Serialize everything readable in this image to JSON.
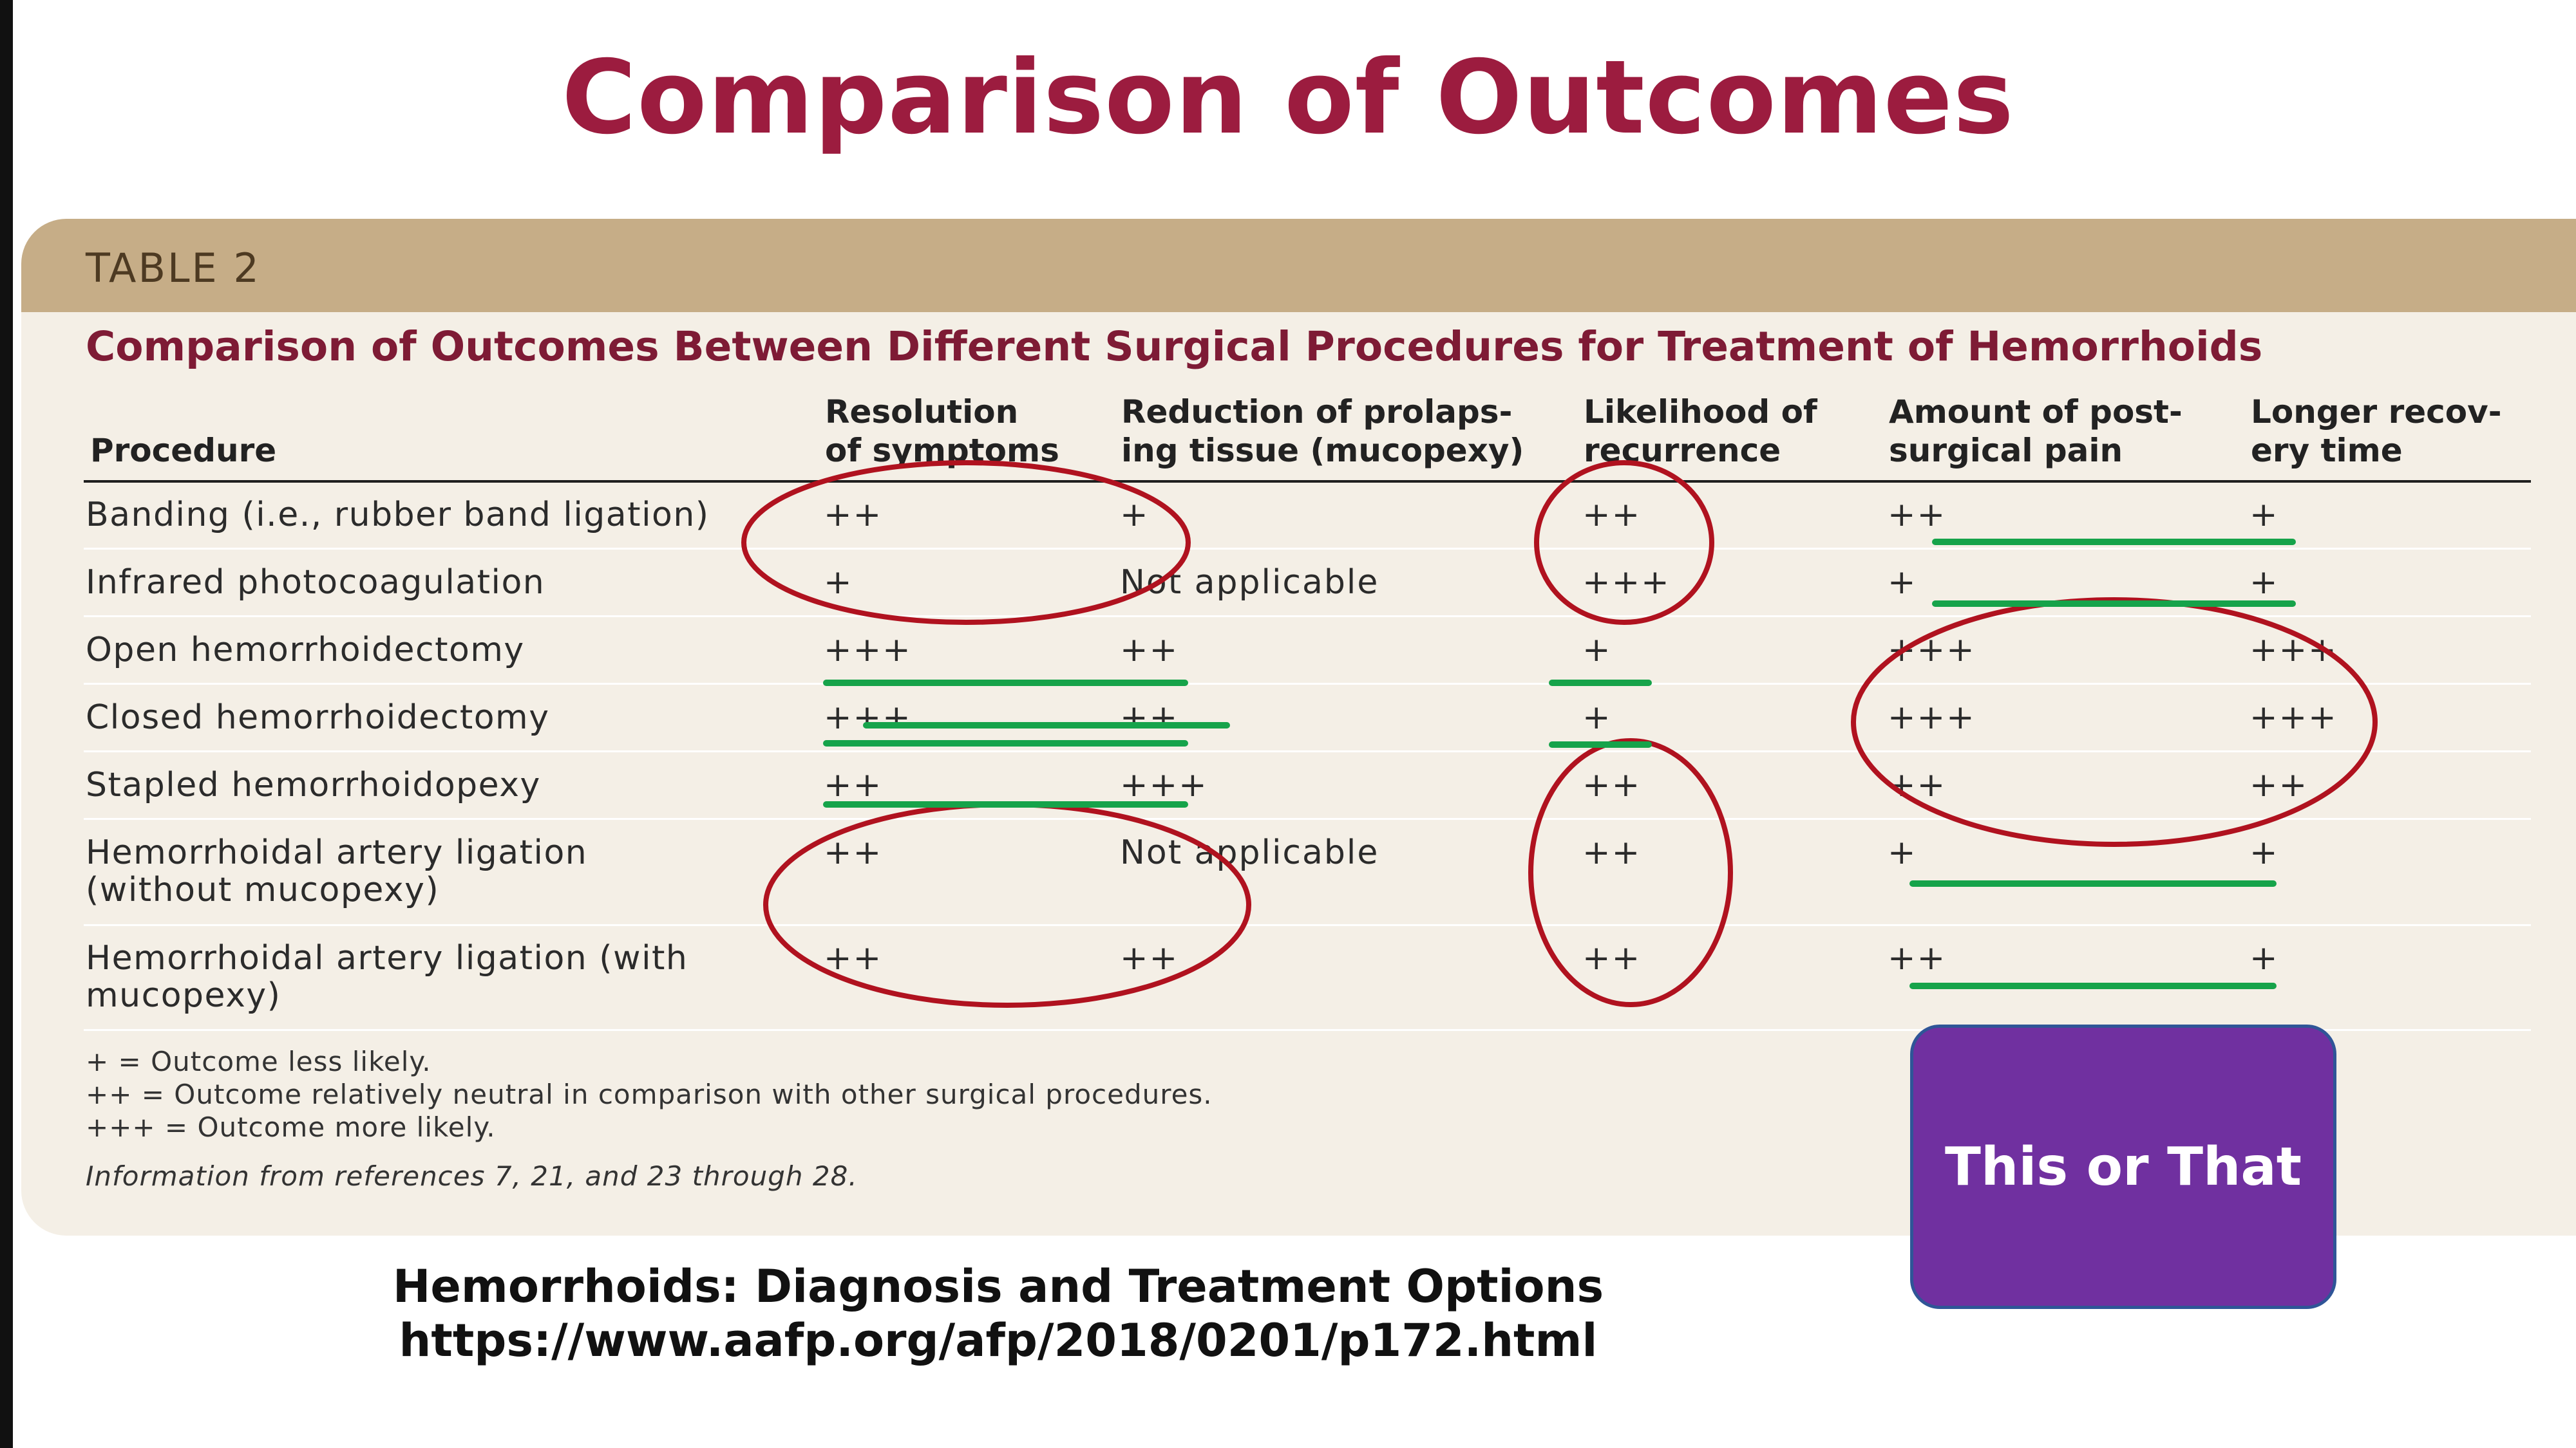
{
  "slide": {
    "title": "Comparison of Outcomes"
  },
  "table": {
    "label": "TABLE 2",
    "heading": "Comparison of Outcomes Between Different Surgical Procedures for Treatment of Hemorrhoids",
    "headers": {
      "procedure": "Procedure",
      "resolution": "Resolution\nof symptoms",
      "reduction": "Reduction of prolaps-\ning tissue (mucopexy)",
      "recurrence": "Likelihood of\nrecurrence",
      "pain": "Amount of post-\nsurgical pain",
      "recovery": "Longer recov-\nery time"
    },
    "rows": [
      {
        "procedure": "Banding (i.e., rubber band ligation)",
        "resolution": "++",
        "reduction": "+",
        "recurrence": "++",
        "pain": "++",
        "recovery": "+"
      },
      {
        "procedure": "Infrared photocoagulation",
        "resolution": "+",
        "reduction": "Not applicable",
        "recurrence": "+++",
        "pain": "+",
        "recovery": "+"
      },
      {
        "procedure": "Open hemorrhoidectomy",
        "resolution": "+++",
        "reduction": "++",
        "recurrence": "+",
        "pain": "+++",
        "recovery": "+++"
      },
      {
        "procedure": "Closed hemorrhoidectomy",
        "resolution": "+++",
        "reduction": "++",
        "recurrence": "+",
        "pain": "+++",
        "recovery": "+++"
      },
      {
        "procedure": "Stapled hemorrhoidopexy",
        "resolution": "++",
        "reduction": "+++",
        "recurrence": "++",
        "pain": "++",
        "recovery": "++"
      },
      {
        "procedure": "Hemorrhoidal artery ligation\n(without mucopexy)",
        "resolution": "++",
        "reduction": "Not applicable",
        "recurrence": "++",
        "pain": "+",
        "recovery": "+"
      },
      {
        "procedure": "Hemorrhoidal artery ligation (with\nmucopexy)",
        "resolution": "++",
        "reduction": "++",
        "recurrence": "++",
        "pain": "++",
        "recovery": "+"
      }
    ],
    "legend": [
      "+ = Outcome less likely.",
      "++ = Outcome relatively neutral in comparison with other surgical procedures.",
      "+++ = Outcome more likely."
    ],
    "source_note": "Information from references 7, 21, and 23 through 28."
  },
  "credit": {
    "article": "Hemorrhoids: Diagnosis and Treatment Options",
    "url": "https://www.aafp.org/afp/2018/0201/p172.html"
  },
  "badge": {
    "label": "This or That"
  },
  "colors": {
    "title": "#9c1c3f",
    "band": "#c6ad87",
    "circle": "#b0121f",
    "underline": "#16a34a",
    "badge": "#7030a0"
  }
}
